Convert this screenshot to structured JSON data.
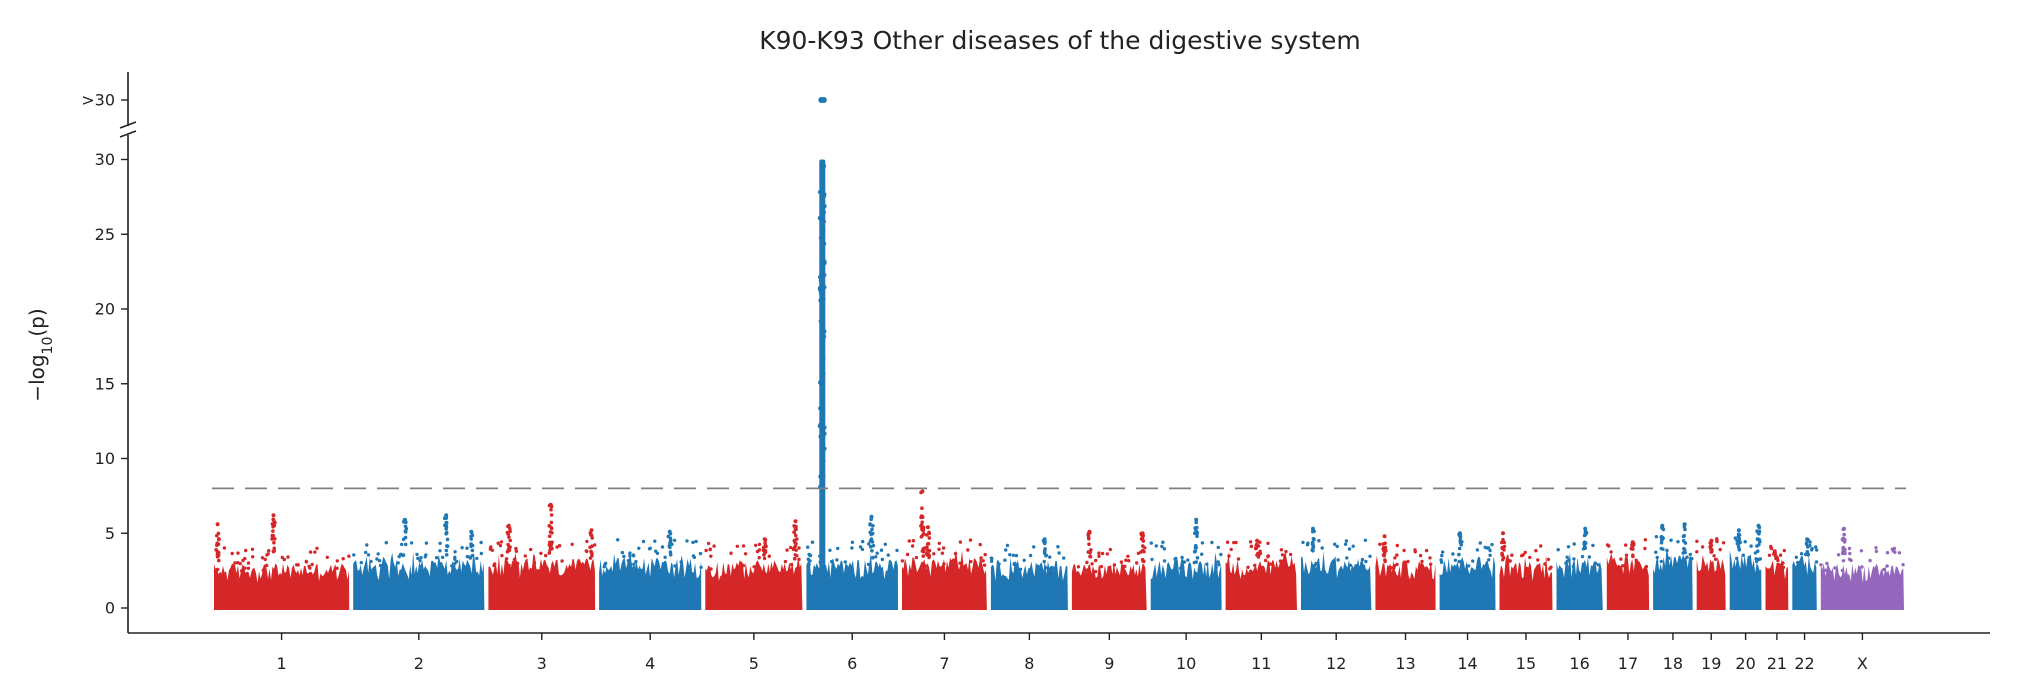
{
  "chart_data": {
    "type": "scatter",
    "subtype": "manhattan",
    "title": "K90-K93 Other diseases of the digestive system",
    "xlabel": "",
    "ylabel": "−log10(p)",
    "ylim": [
      0,
      30
    ],
    "y_break_label": ">30",
    "yticks": [
      "0",
      "5",
      "10",
      "15",
      "20",
      "25",
      "30"
    ],
    "significance_threshold": 8,
    "grid": false,
    "colors": {
      "red": "#d62728",
      "blue": "#1f77b4",
      "purple": "#9467bd",
      "threshold": "#808080",
      "axis": "#222222"
    },
    "chromosomes": [
      {
        "name": "1",
        "color": "red",
        "start": 0,
        "end": 249,
        "base": 3.0,
        "peaks": [
          [
            10,
            5.6
          ],
          [
            110,
            6.2
          ]
        ]
      },
      {
        "name": "2",
        "color": "blue",
        "start": 249,
        "end": 491,
        "base": 3.3,
        "peaks": [
          [
            96,
            5.9
          ],
          [
            170,
            6.2
          ],
          [
            215,
            5.1
          ]
        ]
      },
      {
        "name": "3",
        "color": "red",
        "start": 491,
        "end": 689,
        "base": 3.3,
        "peaks": [
          [
            40,
            5.5
          ],
          [
            115,
            6.9
          ],
          [
            188,
            5.2
          ]
        ]
      },
      {
        "name": "4",
        "color": "blue",
        "start": 689,
        "end": 879,
        "base": 3.4,
        "peaks": [
          [
            130,
            5.1
          ]
        ]
      },
      {
        "name": "5",
        "color": "red",
        "start": 879,
        "end": 1060,
        "base": 3.2,
        "peaks": [
          [
            110,
            4.6
          ],
          [
            165,
            5.8
          ]
        ]
      },
      {
        "name": "6",
        "color": "blue",
        "start": 1060,
        "end": 1231,
        "base": 3.3,
        "peaks": [
          [
            30,
            30.0
          ],
          [
            120,
            6.1
          ]
        ],
        "gwas_peak": {
          "pos": 32,
          "max": 30,
          "above_break": true
        }
      },
      {
        "name": "7",
        "color": "red",
        "start": 1231,
        "end": 1390,
        "base": 3.4,
        "peaks": [
          [
            40,
            7.8
          ],
          [
            50,
            5.4
          ]
        ]
      },
      {
        "name": "8",
        "color": "blue",
        "start": 1390,
        "end": 1535,
        "base": 3.2,
        "peaks": [
          [
            100,
            4.6
          ]
        ]
      },
      {
        "name": "9",
        "color": "red",
        "start": 1535,
        "end": 1676,
        "base": 3.0,
        "peaks": [
          [
            35,
            5.1
          ],
          [
            130,
            5.0
          ]
        ]
      },
      {
        "name": "10",
        "color": "blue",
        "start": 1676,
        "end": 1810,
        "base": 3.3,
        "peaks": [
          [
            85,
            5.9
          ]
        ]
      },
      {
        "name": "11",
        "color": "red",
        "start": 1810,
        "end": 1945,
        "base": 3.3,
        "peaks": [
          [
            60,
            4.5
          ]
        ]
      },
      {
        "name": "12",
        "color": "blue",
        "start": 1945,
        "end": 2078,
        "base": 3.4,
        "peaks": [
          [
            25,
            5.3
          ]
        ]
      },
      {
        "name": "13",
        "color": "red",
        "start": 2078,
        "end": 2193,
        "base": 3.2,
        "peaks": [
          [
            20,
            4.8
          ]
        ]
      },
      {
        "name": "14",
        "color": "blue",
        "start": 2193,
        "end": 2300,
        "base": 3.5,
        "peaks": [
          [
            40,
            5.0
          ]
        ]
      },
      {
        "name": "15",
        "color": "red",
        "start": 2300,
        "end": 2402,
        "base": 3.2,
        "peaks": [
          [
            10,
            5.0
          ]
        ]
      },
      {
        "name": "16",
        "color": "blue",
        "start": 2402,
        "end": 2492,
        "base": 3.4,
        "peaks": [
          [
            55,
            5.3
          ]
        ]
      },
      {
        "name": "17",
        "color": "red",
        "start": 2492,
        "end": 2575,
        "base": 3.4,
        "peaks": [
          [
            50,
            4.4
          ]
        ]
      },
      {
        "name": "18",
        "color": "blue",
        "start": 2575,
        "end": 2653,
        "base": 3.6,
        "peaks": [
          [
            20,
            5.5
          ],
          [
            60,
            5.6
          ]
        ]
      },
      {
        "name": "19",
        "color": "red",
        "start": 2653,
        "end": 2712,
        "base": 3.5,
        "peaks": [
          [
            30,
            4.5
          ]
        ]
      },
      {
        "name": "20",
        "color": "blue",
        "start": 2712,
        "end": 2776,
        "base": 3.6,
        "peaks": [
          [
            20,
            5.2
          ],
          [
            55,
            5.5
          ]
        ]
      },
      {
        "name": "21",
        "color": "red",
        "start": 2776,
        "end": 2824,
        "base": 3.3,
        "peaks": [
          [
            20,
            3.8
          ]
        ]
      },
      {
        "name": "22",
        "color": "blue",
        "start": 2824,
        "end": 2875,
        "base": 3.5,
        "peaks": [
          [
            30,
            4.6
          ]
        ]
      },
      {
        "name": "X",
        "color": "purple",
        "start": 2875,
        "end": 3031,
        "base": 3.0,
        "peaks": [
          [
            45,
            5.3
          ]
        ]
      }
    ]
  }
}
